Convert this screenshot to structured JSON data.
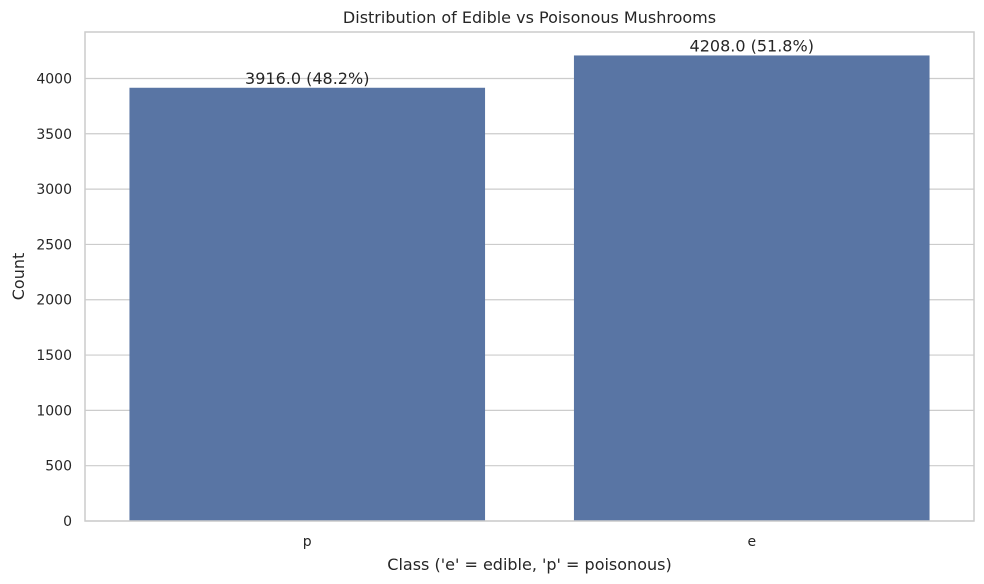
{
  "chart_data": {
    "type": "bar",
    "title": "Distribution of Edible vs Poisonous Mushrooms",
    "xlabel": "Class ('e' = edible, 'p' = poisonous)",
    "ylabel": "Count",
    "categories": [
      "p",
      "e"
    ],
    "values": [
      3916,
      4208
    ],
    "data_labels": [
      "3916.0 (48.2%)",
      "4208.0 (51.8%)"
    ],
    "ylim": [
      0,
      4420
    ],
    "yticks": [
      0,
      500,
      1000,
      1500,
      2000,
      2500,
      3000,
      3500,
      4000
    ],
    "grid": true,
    "bar_color": "#5975a4"
  }
}
